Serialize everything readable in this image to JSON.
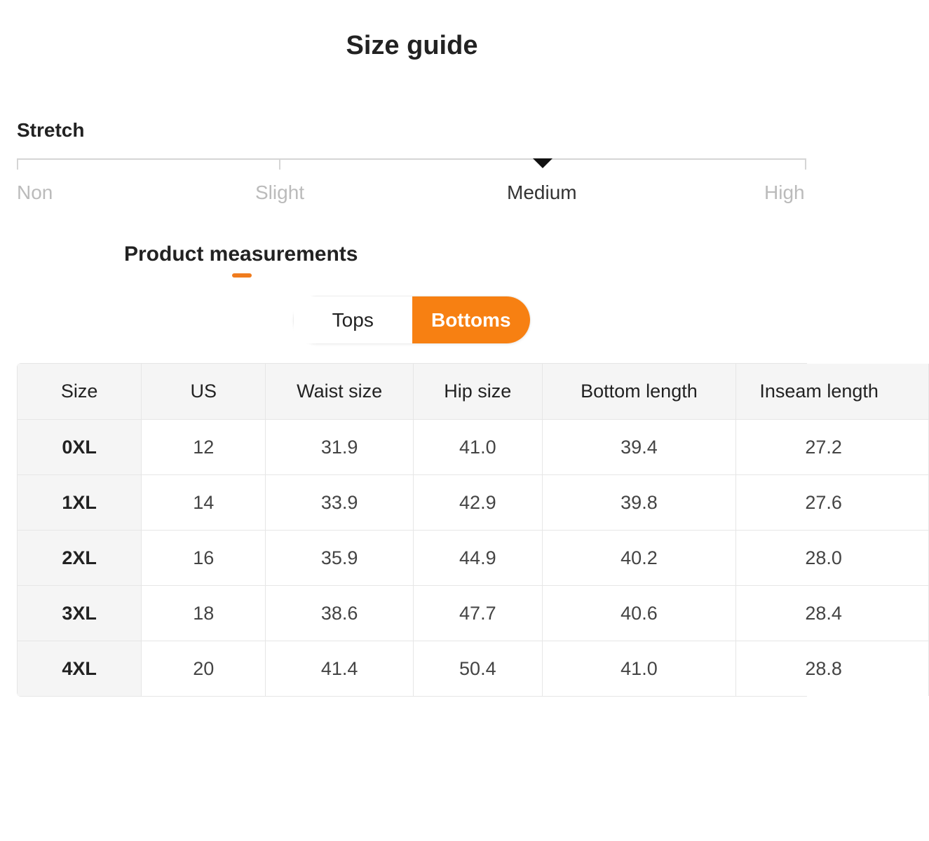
{
  "title": "Size guide",
  "stretch": {
    "label": "Stretch",
    "levels": [
      "Non",
      "Slight",
      "Medium",
      "High"
    ],
    "selected": "Medium"
  },
  "measurements": {
    "heading": "Product measurements",
    "tabs": [
      "Tops",
      "Bottoms"
    ],
    "active_tab": "Bottoms",
    "accent_color": "#f78012"
  },
  "table": {
    "headers": [
      "Size",
      "US",
      "Waist size",
      "Hip size",
      "Bottom length",
      "Inseam length"
    ],
    "rows": [
      [
        "0XL",
        "12",
        "31.9",
        "41.0",
        "39.4",
        "27.2"
      ],
      [
        "1XL",
        "14",
        "33.9",
        "42.9",
        "39.8",
        "27.6"
      ],
      [
        "2XL",
        "16",
        "35.9",
        "44.9",
        "40.2",
        "28.0"
      ],
      [
        "3XL",
        "18",
        "38.6",
        "47.7",
        "40.6",
        "28.4"
      ],
      [
        "4XL",
        "20",
        "41.4",
        "50.4",
        "41.0",
        "28.8"
      ]
    ]
  }
}
